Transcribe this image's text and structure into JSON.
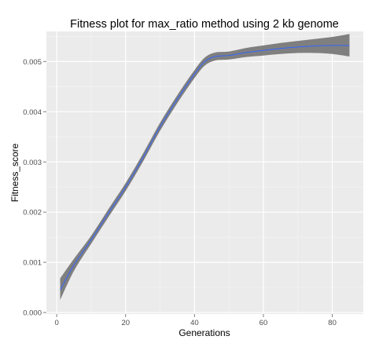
{
  "chart_data": {
    "type": "line",
    "title": "Fitness plot for max_ratio method using 2 kb genome",
    "xlabel": "Generations",
    "ylabel": "Fitness_score",
    "xlim": [
      -3,
      89
    ],
    "ylim": [
      -3e-05,
      0.0056
    ],
    "x_ticks": [
      0,
      20,
      40,
      60,
      80
    ],
    "x_tick_labels": [
      "0",
      "20",
      "40",
      "60",
      "80"
    ],
    "y_ticks": [
      0,
      0.001,
      0.002,
      0.003,
      0.004,
      0.005
    ],
    "y_tick_labels": [
      "0.000",
      "0.001",
      "0.002",
      "0.003",
      "0.004",
      "0.005"
    ],
    "grid": true,
    "series": [
      {
        "color": "#3366ff",
        "band_color": "#7f7f7f",
        "x": [
          1,
          5,
          10,
          15,
          20,
          25,
          30,
          35,
          40,
          43,
          46,
          50,
          55,
          60,
          65,
          70,
          75,
          80,
          85
        ],
        "y": [
          0.00045,
          0.00095,
          0.00145,
          0.00198,
          0.0025,
          0.00308,
          0.0037,
          0.00425,
          0.00475,
          0.005,
          0.0051,
          0.00512,
          0.00518,
          0.00522,
          0.00526,
          0.00529,
          0.00531,
          0.00532,
          0.00532
        ],
        "lower": [
          0.00025,
          0.00083,
          0.00137,
          0.0019,
          0.00242,
          0.003,
          0.00362,
          0.00417,
          0.00467,
          0.00492,
          0.00502,
          0.00504,
          0.00509,
          0.00512,
          0.00515,
          0.00517,
          0.00517,
          0.00515,
          0.0051
        ],
        "upper": [
          0.00068,
          0.00107,
          0.00153,
          0.00206,
          0.00258,
          0.00316,
          0.00378,
          0.00433,
          0.00483,
          0.00508,
          0.00518,
          0.0052,
          0.00527,
          0.00532,
          0.00537,
          0.00541,
          0.00545,
          0.00549,
          0.00555
        ]
      }
    ]
  }
}
